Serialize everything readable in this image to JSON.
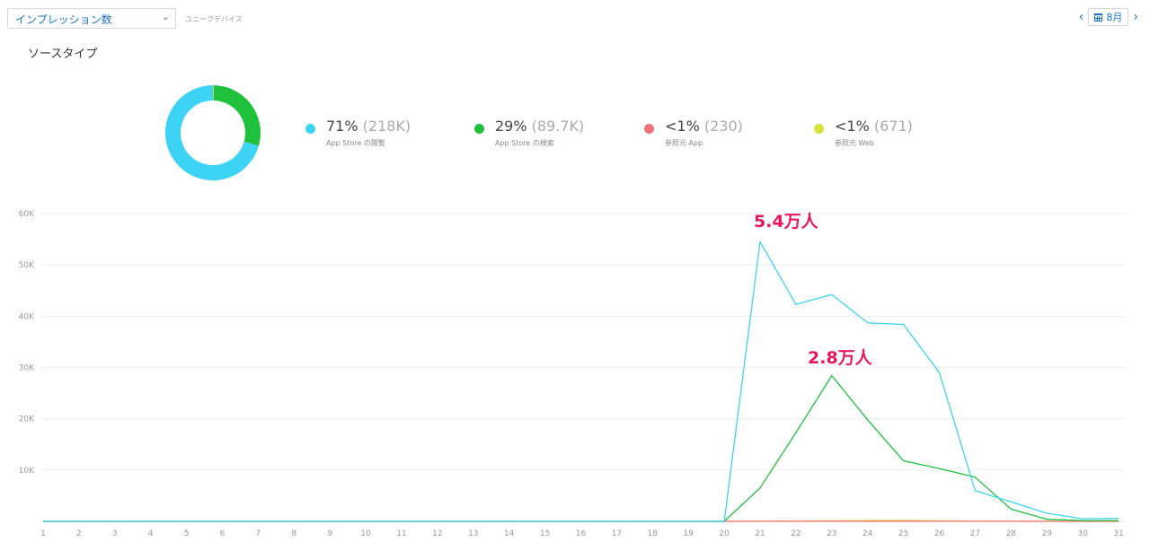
{
  "header": {
    "metric_select": "インプレッション数",
    "subtitle": "ユニークデバイス",
    "month": "8月",
    "prev_icon": "chevron-left-icon",
    "next_icon": "chevron-right-icon",
    "calendar_icon": "calendar-icon"
  },
  "section_title": "ソースタイプ",
  "colors": {
    "browse": "#3dd3f5",
    "search": "#1ec03c",
    "referral_app": "#f2717a",
    "referral_web": "#d9e23b",
    "annotation": "#e8175d"
  },
  "legend": [
    {
      "percent": "71%",
      "count": "(218K)",
      "label": "App Store の閲覧"
    },
    {
      "percent": "29%",
      "count": "(89.7K)",
      "label": "App Store の検索"
    },
    {
      "percent": "<1%",
      "count": "(230)",
      "label": "参照元 App"
    },
    {
      "percent": "<1%",
      "count": "(671)",
      "label": "参照元 Web"
    }
  ],
  "annotations": {
    "peak_browse": "5.4万人",
    "peak_search": "2.8万人"
  },
  "chart_data": [
    {
      "type": "pie",
      "variant": "donut",
      "labels": [
        "App Store の閲覧",
        "App Store の検索",
        "参照元 App",
        "参照元 Web"
      ],
      "values": [
        218000,
        89700,
        230,
        671
      ]
    },
    {
      "type": "line",
      "x": [
        1,
        2,
        3,
        4,
        5,
        6,
        7,
        8,
        9,
        10,
        11,
        12,
        13,
        14,
        15,
        16,
        17,
        18,
        19,
        20,
        21,
        22,
        23,
        24,
        25,
        26,
        27,
        28,
        29,
        30,
        31
      ],
      "ylim": [
        0,
        60000
      ],
      "yticks": [
        10000,
        20000,
        30000,
        40000,
        50000,
        60000
      ],
      "ytick_labels": [
        "10K",
        "20K",
        "30K",
        "40K",
        "50K",
        "60K"
      ],
      "grid": true,
      "series": [
        {
          "name": "App Store の閲覧",
          "values": [
            0,
            0,
            0,
            0,
            0,
            0,
            0,
            0,
            0,
            0,
            0,
            0,
            0,
            0,
            0,
            0,
            0,
            0,
            0,
            0,
            54500,
            42300,
            44200,
            38700,
            38400,
            29000,
            6000,
            3800,
            1600,
            500,
            600
          ]
        },
        {
          "name": "App Store の検索",
          "values": [
            0,
            0,
            0,
            0,
            0,
            0,
            0,
            0,
            0,
            0,
            0,
            0,
            0,
            0,
            0,
            0,
            0,
            0,
            0,
            0,
            6500,
            17300,
            28400,
            19800,
            11800,
            10300,
            8600,
            2400,
            400,
            150,
            150
          ]
        },
        {
          "name": "参照元 App",
          "values": [
            0,
            0,
            0,
            0,
            0,
            0,
            0,
            0,
            0,
            0,
            0,
            0,
            0,
            0,
            0,
            0,
            0,
            0,
            0,
            0,
            10,
            20,
            30,
            40,
            30,
            20,
            10,
            10,
            5,
            5,
            5
          ]
        },
        {
          "name": "参照元 Web",
          "values": [
            0,
            0,
            0,
            0,
            0,
            0,
            0,
            0,
            0,
            0,
            0,
            0,
            0,
            0,
            0,
            0,
            0,
            0,
            0,
            0,
            30,
            60,
            100,
            180,
            200,
            100,
            40,
            20,
            10,
            5,
            5
          ]
        }
      ]
    }
  ]
}
